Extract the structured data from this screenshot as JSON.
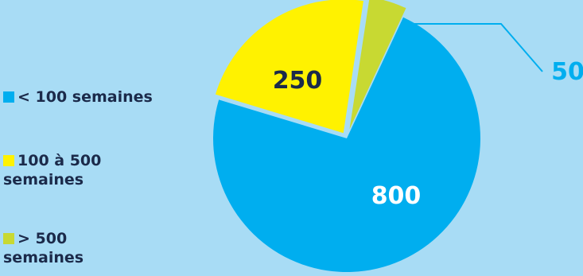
{
  "colors": {
    "background": "#a8dcf5",
    "series": [
      "#00aeef",
      "#fff200",
      "#c8d932"
    ],
    "leader_line": "#00aeef",
    "label_dark": "#1b2a4a",
    "label_light": "#ffffff"
  },
  "chart_data": {
    "type": "pie",
    "title": "",
    "categories": [
      "< 100 semaines",
      "100 à 500 semaines",
      "> 500 semaines"
    ],
    "values": [
      800,
      250,
      50
    ],
    "data_labels": [
      "800",
      "250",
      "50"
    ],
    "legend": {
      "placement": "left",
      "items": [
        {
          "label": "< 100 semaines",
          "color": "#00aeef"
        },
        {
          "label": "100 à 500 semaines",
          "color": "#fff200"
        },
        {
          "label": "> 500 semaines",
          "color": "#c8d932"
        }
      ]
    }
  }
}
